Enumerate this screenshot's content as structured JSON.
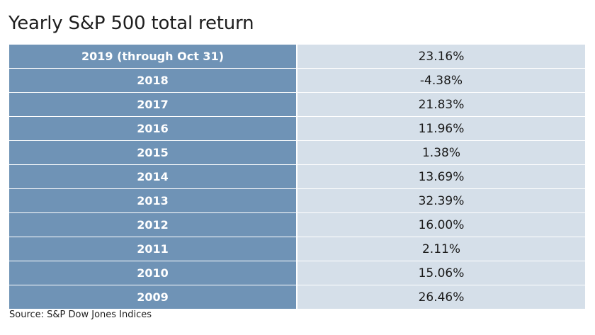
{
  "chart_data": {
    "type": "table",
    "title": "Yearly S&P 500 total return",
    "source": "Source: S&P Dow Jones Indices",
    "rows": [
      {
        "year": "2019 (through Oct 31)",
        "return": "23.16%"
      },
      {
        "year": "2018",
        "return": "-4.38%"
      },
      {
        "year": "2017",
        "return": "21.83%"
      },
      {
        "year": "2016",
        "return": "11.96%"
      },
      {
        "year": "2015",
        "return": "1.38%"
      },
      {
        "year": "2014",
        "return": "13.69%"
      },
      {
        "year": "2013",
        "return": "32.39%"
      },
      {
        "year": "2012",
        "return": "16.00%"
      },
      {
        "year": "2011",
        "return": "2.11%"
      },
      {
        "year": "2010",
        "return": "15.06%"
      },
      {
        "year": "2009",
        "return": "26.46%"
      }
    ],
    "colors": {
      "year_column": "#6f93b6",
      "value_column": "#d5dfe9"
    }
  }
}
